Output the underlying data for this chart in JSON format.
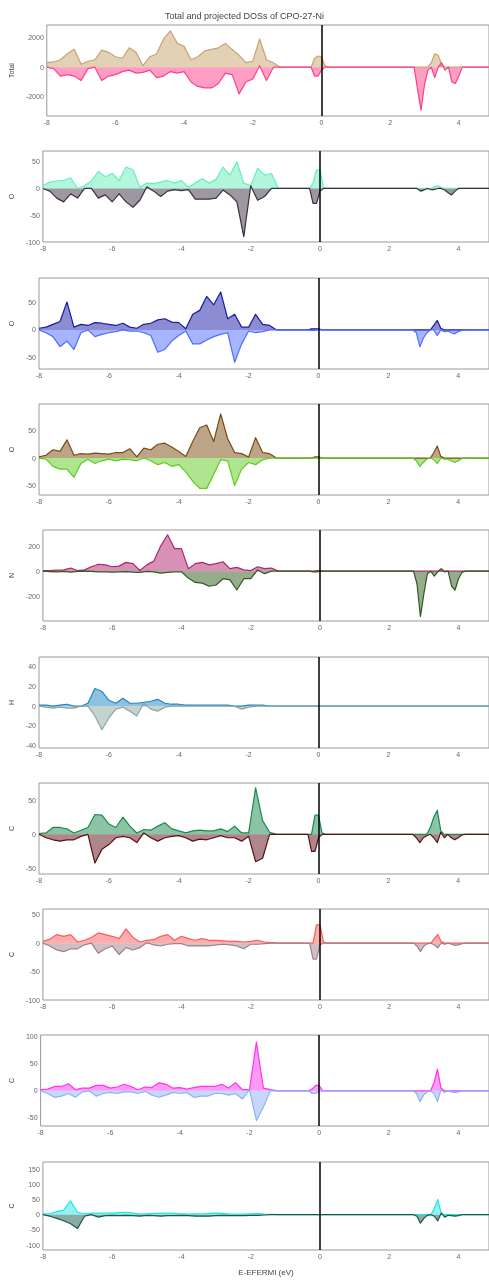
{
  "chart_data": [
    {
      "type": "area",
      "title": "Total and projected DOSs of CPO-27-Ni",
      "ylabel": "Total",
      "xlim": [
        -8,
        4.88
      ],
      "xticks": [
        -8,
        -6,
        -4,
        -2,
        0,
        2,
        4
      ],
      "ylim": [
        -3290,
        2840
      ],
      "yticks": [
        -2000,
        0,
        2000
      ],
      "grid": false,
      "marker": "none",
      "ref_lines": [
        {
          "axis": "x",
          "value": 0,
          "color": "#000000"
        }
      ],
      "x": [
        -8,
        -7.8,
        -7.6,
        -7.4,
        -7.2,
        -7,
        -6.8,
        -6.6,
        -6.4,
        -6.2,
        -6,
        -5.8,
        -5.6,
        -5.4,
        -5.2,
        -5,
        -4.8,
        -4.6,
        -4.4,
        -4.2,
        -4,
        -3.8,
        -3.6,
        -3.4,
        -3.2,
        -3,
        -2.8,
        -2.6,
        -2.4,
        -2.2,
        -2,
        -1.8,
        -1.6,
        -1.4,
        -1.2,
        -1,
        -0.3,
        -0.2,
        -0.1,
        0,
        0.1,
        0.2,
        2.7,
        2.8,
        2.9,
        3,
        3.1,
        3.2,
        3.3,
        3.4,
        3.5,
        3.6,
        3.7,
        3.8,
        3.9,
        4,
        4.1,
        4.2,
        4.3,
        4.88
      ],
      "series": [
        {
          "color": "#c8a46e",
          "values": [
            300,
            350,
            500,
            900,
            1200,
            200,
            400,
            500,
            1150,
            1000,
            700,
            600,
            1300,
            1000,
            100,
            700,
            900,
            1900,
            2450,
            1600,
            1400,
            500,
            700,
            1100,
            1200,
            1300,
            1600,
            1200,
            800,
            300,
            400,
            1900,
            500,
            300,
            0,
            0,
            0,
            600,
            750,
            700,
            100,
            0,
            0,
            0,
            0,
            0,
            0,
            300,
            900,
            800,
            200,
            0,
            0,
            0,
            0,
            0,
            0,
            0,
            0,
            0
          ]
        },
        {
          "color": "#ff3d8b",
          "values": [
            0,
            -100,
            -600,
            -500,
            -600,
            -900,
            -100,
            0,
            -900,
            -600,
            -500,
            -300,
            -200,
            -400,
            -350,
            -200,
            -700,
            -600,
            -300,
            -400,
            -300,
            -1000,
            -1300,
            -1400,
            -1400,
            -1100,
            -400,
            -500,
            -1800,
            -1000,
            -800,
            100,
            -900,
            0,
            0,
            0,
            0,
            -600,
            -600,
            -200,
            0,
            0,
            0,
            -1500,
            -2900,
            -1200,
            -200,
            0,
            -700,
            0,
            300,
            -200,
            0,
            -1000,
            -1100,
            -600,
            0,
            0,
            0,
            0
          ]
        }
      ]
    },
    {
      "type": "area",
      "ylabel": "O",
      "xlim": [
        -8,
        4.88
      ],
      "xticks": [
        -8,
        -6,
        -4,
        -2,
        0,
        2,
        4
      ],
      "ylim": [
        -100,
        70
      ],
      "yticks": [
        -100,
        -50,
        0,
        50
      ],
      "grid": false,
      "marker": "none",
      "ref_lines": [
        {
          "axis": "x",
          "value": 0,
          "color": "#000000"
        }
      ],
      "x": [
        -8,
        -7.8,
        -7.6,
        -7.4,
        -7.2,
        -7,
        -6.8,
        -6.6,
        -6.4,
        -6.2,
        -6,
        -5.8,
        -5.6,
        -5.4,
        -5.2,
        -5,
        -4.8,
        -4.6,
        -4.4,
        -4.2,
        -4,
        -3.8,
        -3.6,
        -3.4,
        -3.2,
        -3,
        -2.8,
        -2.6,
        -2.4,
        -2.2,
        -2,
        -1.8,
        -1.6,
        -1.4,
        -1.2,
        -1,
        -0.3,
        -0.2,
        -0.1,
        0,
        0.1,
        0.2,
        2.7,
        2.8,
        2.9,
        3,
        3.1,
        3.2,
        3.3,
        3.4,
        3.5,
        3.6,
        3.7,
        3.8,
        3.9,
        4,
        4.1,
        4.2,
        4.3,
        4.88
      ],
      "series": [
        {
          "color": "#66f0b8",
          "values": [
            5,
            12,
            14,
            15,
            20,
            0,
            5,
            14,
            32,
            22,
            28,
            15,
            40,
            35,
            2,
            10,
            9,
            12,
            15,
            10,
            15,
            2,
            10,
            18,
            10,
            17,
            40,
            25,
            50,
            10,
            5,
            38,
            25,
            28,
            0,
            0,
            0,
            10,
            35,
            35,
            2,
            0,
            0,
            0,
            0,
            0,
            0,
            0,
            3,
            5,
            2,
            0,
            0,
            0,
            0,
            0,
            0,
            0,
            0,
            0
          ]
        },
        {
          "color": "#3b2f42",
          "values": [
            0,
            -5,
            -18,
            -25,
            -10,
            -18,
            0,
            0,
            -18,
            -12,
            -25,
            -10,
            -25,
            -35,
            -22,
            3,
            -5,
            -15,
            -5,
            -2,
            -4,
            -2,
            -20,
            -20,
            -20,
            -18,
            -3,
            -12,
            -25,
            -90,
            5,
            -22,
            -15,
            0,
            0,
            0,
            0,
            -28,
            -28,
            -5,
            0,
            0,
            0,
            0,
            -5,
            -3,
            0,
            -2,
            -2,
            0,
            0,
            -3,
            -8,
            -12,
            -5,
            0,
            0,
            0,
            0,
            0
          ]
        }
      ]
    },
    {
      "type": "area",
      "ylabel": "O",
      "xlim": [
        -8,
        4.88
      ],
      "xticks": [
        -8,
        -6,
        -4,
        -2,
        0,
        2,
        4
      ],
      "ylim": [
        -70,
        93
      ],
      "yticks": [
        -50,
        0,
        50
      ],
      "grid": false,
      "marker": "none",
      "ref_lines": [
        {
          "axis": "x",
          "value": 0,
          "color": "#000000"
        }
      ],
      "x": [
        -8,
        -7.8,
        -7.6,
        -7.4,
        -7.2,
        -7,
        -6.8,
        -6.6,
        -6.4,
        -6.2,
        -6,
        -5.8,
        -5.6,
        -5.4,
        -5.2,
        -5,
        -4.8,
        -4.6,
        -4.4,
        -4.2,
        -4,
        -3.8,
        -3.6,
        -3.4,
        -3.2,
        -3,
        -2.8,
        -2.6,
        -2.4,
        -2.2,
        -2,
        -1.8,
        -1.6,
        -1.4,
        -1.2,
        -1,
        -0.3,
        -0.2,
        -0.1,
        0,
        0.1,
        0.2,
        2.7,
        2.8,
        2.9,
        3,
        3.1,
        3.2,
        3.3,
        3.4,
        3.5,
        3.6,
        3.7,
        3.8,
        3.9,
        4,
        4.1,
        4.2,
        4.3,
        4.88
      ],
      "series": [
        {
          "color": "#1a1aa8",
          "values": [
            3,
            5,
            10,
            15,
            50,
            5,
            10,
            8,
            13,
            12,
            10,
            8,
            12,
            5,
            3,
            10,
            12,
            18,
            20,
            14,
            13,
            2,
            28,
            35,
            60,
            45,
            68,
            20,
            28,
            5,
            5,
            28,
            10,
            8,
            0,
            0,
            0,
            2,
            2,
            2,
            0,
            0,
            0,
            0,
            0,
            0,
            0,
            0,
            8,
            17,
            3,
            0,
            0,
            0,
            0,
            0,
            0,
            0,
            0,
            0
          ]
        },
        {
          "color": "#4f6cff",
          "values": [
            0,
            -5,
            -12,
            -30,
            -20,
            -35,
            -5,
            0,
            -12,
            -8,
            -5,
            -3,
            0,
            -2,
            -2,
            -5,
            -10,
            -40,
            -35,
            -20,
            -10,
            -2,
            -25,
            -25,
            -18,
            -12,
            -8,
            -5,
            -58,
            -25,
            -2,
            -5,
            -3,
            0,
            0,
            0,
            0,
            -1,
            -1,
            0,
            0,
            0,
            0,
            -5,
            -30,
            -15,
            -5,
            0,
            0,
            -10,
            0,
            -3,
            -2,
            -5,
            -7,
            -3,
            -1,
            0,
            0,
            0
          ]
        }
      ]
    },
    {
      "type": "area",
      "ylabel": "O",
      "xlim": [
        -8,
        4.88
      ],
      "xticks": [
        -8,
        -6,
        -4,
        -2,
        0,
        2,
        4
      ],
      "ylim": [
        -67,
        98
      ],
      "yticks": [
        -50,
        0,
        50
      ],
      "grid": false,
      "marker": "none",
      "ref_lines": [
        {
          "axis": "x",
          "value": 0,
          "color": "#000000"
        }
      ],
      "x": [
        -8,
        -7.8,
        -7.6,
        -7.4,
        -7.2,
        -7,
        -6.8,
        -6.6,
        -6.4,
        -6.2,
        -6,
        -5.8,
        -5.6,
        -5.4,
        -5.2,
        -5,
        -4.8,
        -4.6,
        -4.4,
        -4.2,
        -4,
        -3.8,
        -3.6,
        -3.4,
        -3.2,
        -3,
        -2.8,
        -2.6,
        -2.4,
        -2.2,
        -2,
        -1.8,
        -1.6,
        -1.4,
        -1.2,
        -1,
        -0.3,
        -0.2,
        -0.1,
        0,
        0.1,
        0.2,
        2.7,
        2.8,
        2.9,
        3,
        3.1,
        3.2,
        3.3,
        3.4,
        3.5,
        3.6,
        3.7,
        3.8,
        3.9,
        4,
        4.1,
        4.2,
        4.3,
        4.88
      ],
      "series": [
        {
          "color": "#7a4a10",
          "values": [
            2,
            5,
            15,
            12,
            33,
            5,
            8,
            7,
            9,
            8,
            7,
            10,
            10,
            17,
            2,
            18,
            15,
            25,
            27,
            20,
            12,
            3,
            30,
            55,
            60,
            30,
            80,
            35,
            10,
            8,
            2,
            37,
            10,
            8,
            0,
            0,
            0,
            0,
            2,
            2,
            0,
            0,
            0,
            0,
            0,
            0,
            0,
            0,
            10,
            22,
            3,
            0,
            0,
            0,
            0,
            0,
            0,
            0,
            0,
            0
          ]
        },
        {
          "color": "#5ecc1e",
          "values": [
            0,
            -2,
            -15,
            -20,
            -20,
            -35,
            -10,
            -2,
            -10,
            -5,
            -2,
            -5,
            -2,
            -3,
            -5,
            0,
            -5,
            -12,
            -8,
            -15,
            -12,
            -25,
            -42,
            -55,
            -55,
            -30,
            -3,
            -5,
            -50,
            -20,
            -8,
            -12,
            -3,
            0,
            0,
            0,
            0,
            0,
            0,
            0,
            0,
            0,
            0,
            -5,
            -15,
            -8,
            -2,
            0,
            -3,
            -10,
            0,
            -2,
            -2,
            -5,
            -8,
            -5,
            -1,
            0,
            0,
            0
          ]
        }
      ]
    },
    {
      "type": "area",
      "ylabel": "N",
      "xlim": [
        -8,
        4.88
      ],
      "xticks": [
        -8,
        -6,
        -4,
        -2,
        0,
        2,
        4
      ],
      "ylim": [
        -397,
        328
      ],
      "yticks": [
        -200,
        0,
        200
      ],
      "grid": false,
      "marker": "none",
      "ref_lines": [
        {
          "axis": "x",
          "value": 0,
          "color": "#000000"
        }
      ],
      "x": [
        -8,
        -7.8,
        -7.6,
        -7.4,
        -7.2,
        -7,
        -6.8,
        -6.6,
        -6.4,
        -6.2,
        -6,
        -5.8,
        -5.6,
        -5.4,
        -5.2,
        -5,
        -4.8,
        -4.6,
        -4.4,
        -4.2,
        -4,
        -3.8,
        -3.6,
        -3.4,
        -3.2,
        -3,
        -2.8,
        -2.6,
        -2.4,
        -2.2,
        -2,
        -1.8,
        -1.6,
        -1.4,
        -1.2,
        -1,
        -0.3,
        -0.2,
        -0.1,
        0,
        0.1,
        0.2,
        2.7,
        2.8,
        2.9,
        3,
        3.1,
        3.2,
        3.3,
        3.4,
        3.5,
        3.6,
        3.7,
        3.8,
        3.9,
        4,
        4.1,
        4.2,
        4.3,
        4.88
      ],
      "series": [
        {
          "color": "#b0246e",
          "values": [
            5,
            5,
            8,
            10,
            25,
            5,
            10,
            35,
            55,
            50,
            35,
            40,
            70,
            60,
            5,
            50,
            80,
            200,
            290,
            180,
            180,
            20,
            60,
            70,
            50,
            60,
            75,
            20,
            30,
            10,
            5,
            35,
            20,
            25,
            0,
            0,
            0,
            0,
            5,
            5,
            0,
            0,
            0,
            0,
            0,
            0,
            0,
            0,
            0,
            0,
            0,
            0,
            0,
            0,
            0,
            0,
            0,
            0,
            0,
            0
          ]
        },
        {
          "color": "#2e5a1c",
          "values": [
            0,
            -3,
            -5,
            -2,
            -8,
            -2,
            0,
            -2,
            -5,
            -5,
            -8,
            -5,
            -3,
            -8,
            -10,
            -2,
            -5,
            -15,
            -10,
            -5,
            -5,
            -55,
            -90,
            -95,
            -120,
            -110,
            -60,
            -70,
            -150,
            -60,
            -60,
            10,
            -20,
            0,
            0,
            0,
            0,
            -5,
            -5,
            -2,
            0,
            0,
            0,
            -100,
            -360,
            -180,
            -20,
            0,
            -40,
            -5,
            20,
            -5,
            0,
            -120,
            -150,
            -60,
            -10,
            0,
            0,
            0
          ]
        }
      ]
    },
    {
      "type": "area",
      "ylabel": "H",
      "xlim": [
        -8,
        4.88
      ],
      "xticks": [
        -8,
        -6,
        -4,
        -2,
        0,
        2,
        4
      ],
      "ylim": [
        -42.5,
        50
      ],
      "yticks": [
        -40,
        -20,
        0,
        20,
        40
      ],
      "grid": false,
      "marker": "none",
      "ref_lines": [
        {
          "axis": "x",
          "value": 0,
          "color": "#000000"
        }
      ],
      "x": [
        -8,
        -7.8,
        -7.6,
        -7.4,
        -7.2,
        -7,
        -6.8,
        -6.6,
        -6.4,
        -6.2,
        -6,
        -5.8,
        -5.6,
        -5.4,
        -5.2,
        -5,
        -4.8,
        -4.6,
        -4.4,
        -4.2,
        -4,
        -3.8,
        -3.6,
        -3.4,
        -3.2,
        -3,
        -2.8,
        -2.6,
        -2.4,
        -2.2,
        -2,
        -1.8,
        -1.6,
        -1.4,
        -1.2,
        -1,
        -0.3,
        -0.2,
        -0.1,
        0,
        0.1,
        0.2,
        2.7,
        2.8,
        2.9,
        3,
        3.1,
        3.2,
        3.3,
        3.4,
        3.5,
        3.6,
        3.7,
        3.8,
        3.9,
        4,
        4.1,
        4.2,
        4.3,
        4.88
      ],
      "series": [
        {
          "color": "#1f86c4",
          "values": [
            1,
            1,
            0,
            1,
            2,
            0,
            0,
            3,
            18,
            15,
            6,
            3,
            8,
            3,
            3,
            4,
            5,
            7,
            3,
            2,
            2,
            1,
            1,
            1,
            1,
            1,
            1,
            1,
            0,
            0,
            1,
            1,
            1,
            0,
            0,
            0,
            0,
            0,
            0,
            0,
            0,
            0,
            0,
            0,
            0,
            0,
            0,
            0,
            0,
            0,
            0,
            0,
            0,
            0,
            0,
            0,
            0,
            0,
            0,
            0
          ]
        },
        {
          "color": "#8aa6a2",
          "values": [
            0,
            -1,
            -2,
            -1,
            -2,
            -2,
            0,
            0,
            -10,
            -24,
            -12,
            -3,
            -1,
            -5,
            -10,
            3,
            -3,
            -5,
            -1,
            0,
            0,
            0,
            0,
            0,
            0,
            0,
            0,
            0,
            0,
            -3,
            -1,
            0,
            0,
            0,
            0,
            0,
            0,
            0,
            0,
            0,
            0,
            0,
            0,
            0,
            0,
            0,
            0,
            0,
            0,
            0,
            0,
            0,
            0,
            0,
            0,
            0,
            0,
            0,
            0,
            0
          ]
        }
      ]
    },
    {
      "type": "area",
      "ylabel": "C",
      "xlim": [
        -8,
        4.88
      ],
      "xticks": [
        -8,
        -6,
        -4,
        -2,
        0,
        2,
        4
      ],
      "ylim": [
        -58,
        75
      ],
      "yticks": [
        -50,
        0,
        50
      ],
      "grid": false,
      "marker": "none",
      "ref_lines": [
        {
          "axis": "x",
          "value": 0,
          "color": "#000000"
        }
      ],
      "x": [
        -8,
        -7.8,
        -7.6,
        -7.4,
        -7.2,
        -7,
        -6.8,
        -6.6,
        -6.4,
        -6.2,
        -6,
        -5.8,
        -5.6,
        -5.4,
        -5.2,
        -5,
        -4.8,
        -4.6,
        -4.4,
        -4.2,
        -4,
        -3.8,
        -3.6,
        -3.4,
        -3.2,
        -3,
        -2.8,
        -2.6,
        -2.4,
        -2.2,
        -2,
        -1.8,
        -1.6,
        -1.4,
        -1.2,
        -1,
        -0.3,
        -0.2,
        -0.1,
        0,
        0.1,
        0.2,
        2.7,
        2.8,
        2.9,
        3,
        3.1,
        3.2,
        3.3,
        3.4,
        3.5,
        3.6,
        3.7,
        3.8,
        3.9,
        4,
        4.1,
        4.2,
        4.3,
        4.88
      ],
      "series": [
        {
          "color": "#178a4c",
          "values": [
            1,
            2,
            10,
            10,
            8,
            2,
            6,
            10,
            29,
            28,
            15,
            10,
            25,
            12,
            2,
            7,
            6,
            12,
            17,
            8,
            5,
            2,
            5,
            6,
            5,
            5,
            8,
            4,
            12,
            2,
            2,
            68,
            20,
            3,
            0,
            0,
            0,
            0,
            28,
            28,
            2,
            0,
            0,
            0,
            0,
            0,
            0,
            10,
            25,
            35,
            5,
            0,
            0,
            0,
            0,
            0,
            0,
            0,
            0,
            0
          ]
        },
        {
          "color": "#5c0f15",
          "values": [
            0,
            -5,
            -8,
            -10,
            -8,
            -8,
            -3,
            0,
            -42,
            -22,
            -15,
            -5,
            -3,
            -5,
            -12,
            2,
            -5,
            -10,
            -5,
            -3,
            -2,
            -5,
            -10,
            -7,
            -8,
            -5,
            -2,
            -5,
            -5,
            -10,
            -3,
            -40,
            -35,
            0,
            0,
            0,
            0,
            -25,
            -25,
            -5,
            0,
            0,
            0,
            -5,
            -12,
            -5,
            -2,
            0,
            -5,
            -12,
            3,
            -5,
            0,
            -5,
            -8,
            -5,
            -1,
            0,
            0,
            0
          ]
        }
      ]
    },
    {
      "type": "area",
      "ylabel": "C",
      "xlim": [
        -8,
        4.88
      ],
      "xticks": [
        -8,
        -6,
        -4,
        -2,
        0,
        2,
        4
      ],
      "ylim": [
        -100,
        60
      ],
      "yticks": [
        -100,
        -50,
        0,
        50
      ],
      "grid": false,
      "marker": "none",
      "ref_lines": [
        {
          "axis": "x",
          "value": 0,
          "color": "#000000"
        }
      ],
      "x": [
        -8,
        -7.8,
        -7.6,
        -7.4,
        -7.2,
        -7,
        -6.8,
        -6.6,
        -6.4,
        -6.2,
        -6,
        -5.8,
        -5.6,
        -5.4,
        -5.2,
        -5,
        -4.8,
        -4.6,
        -4.4,
        -4.2,
        -4,
        -3.8,
        -3.6,
        -3.4,
        -3.2,
        -3,
        -2.8,
        -2.6,
        -2.4,
        -2.2,
        -2,
        -1.8,
        -1.6,
        -1.4,
        -1.2,
        -1,
        -0.3,
        -0.2,
        -0.1,
        0,
        0.1,
        0.2,
        2.7,
        2.8,
        2.9,
        3,
        3.1,
        3.2,
        3.3,
        3.4,
        3.5,
        3.6,
        3.7,
        3.8,
        3.9,
        4,
        4.1,
        4.2,
        4.3,
        4.88
      ],
      "series": [
        {
          "color": "#ff5a5a",
          "values": [
            3,
            7,
            15,
            12,
            15,
            2,
            5,
            10,
            18,
            15,
            12,
            8,
            25,
            10,
            2,
            5,
            6,
            12,
            15,
            5,
            12,
            8,
            5,
            8,
            5,
            5,
            4,
            3,
            3,
            2,
            3,
            5,
            2,
            1,
            0,
            0,
            0,
            0,
            32,
            32,
            2,
            0,
            0,
            0,
            0,
            0,
            0,
            0,
            8,
            15,
            3,
            0,
            0,
            0,
            0,
            0,
            0,
            0,
            0,
            0
          ]
        },
        {
          "color": "#a08088",
          "values": [
            0,
            -5,
            -12,
            -15,
            -10,
            -10,
            -3,
            0,
            -18,
            -10,
            -5,
            -20,
            -8,
            -12,
            -8,
            1,
            -3,
            -5,
            -2,
            -1,
            -1,
            -5,
            -5,
            -5,
            -5,
            -3,
            -2,
            -3,
            -5,
            -10,
            -2,
            -2,
            -1,
            0,
            0,
            0,
            0,
            -28,
            -28,
            -3,
            0,
            0,
            0,
            -5,
            -15,
            -5,
            -1,
            0,
            -3,
            -8,
            0,
            -2,
            0,
            -2,
            -4,
            -3,
            -1,
            0,
            0,
            0
          ]
        }
      ]
    },
    {
      "type": "area",
      "ylabel": "C",
      "xlim": [
        -8,
        4.88
      ],
      "xticks": [
        -8,
        -6,
        -4,
        -2,
        0,
        2,
        4
      ],
      "ylim": [
        -65,
        103
      ],
      "yticks": [
        -50,
        0,
        50,
        100
      ],
      "grid": false,
      "marker": "none",
      "ref_lines": [
        {
          "axis": "x",
          "value": 0,
          "color": "#000000"
        }
      ],
      "x": [
        -8,
        -7.8,
        -7.6,
        -7.4,
        -7.2,
        -7,
        -6.8,
        -6.6,
        -6.4,
        -6.2,
        -6,
        -5.8,
        -5.6,
        -5.4,
        -5.2,
        -5,
        -4.8,
        -4.6,
        -4.4,
        -4.2,
        -4,
        -3.8,
        -3.6,
        -3.4,
        -3.2,
        -3,
        -2.8,
        -2.6,
        -2.4,
        -2.2,
        -2,
        -1.8,
        -1.6,
        -1.4,
        -1.2,
        -1,
        -0.3,
        -0.2,
        -0.1,
        0,
        0.1,
        0.2,
        2.7,
        2.8,
        2.9,
        3,
        3.1,
        3.2,
        3.3,
        3.4,
        3.5,
        3.6,
        3.7,
        3.8,
        3.9,
        4,
        4.1,
        4.2,
        4.3,
        4.88
      ],
      "series": [
        {
          "color": "#ff33ee",
          "values": [
            2,
            3,
            8,
            8,
            13,
            2,
            5,
            5,
            10,
            10,
            5,
            7,
            12,
            8,
            2,
            7,
            6,
            15,
            12,
            5,
            6,
            3,
            6,
            8,
            8,
            8,
            12,
            5,
            15,
            2,
            2,
            90,
            5,
            2,
            0,
            0,
            0,
            3,
            10,
            10,
            0,
            0,
            0,
            0,
            0,
            0,
            0,
            0,
            15,
            40,
            5,
            0,
            0,
            0,
            0,
            0,
            0,
            0,
            0,
            0
          ]
        },
        {
          "color": "#8cb2f5",
          "values": [
            0,
            -5,
            -12,
            -10,
            -5,
            -12,
            -2,
            0,
            -10,
            -5,
            -3,
            -5,
            -2,
            -2,
            -5,
            -1,
            -8,
            -12,
            -8,
            -3,
            -5,
            -3,
            -12,
            -10,
            -10,
            -5,
            -5,
            -8,
            -5,
            -15,
            2,
            -55,
            -30,
            0,
            0,
            0,
            0,
            -5,
            -5,
            -1,
            0,
            0,
            0,
            -5,
            -20,
            -8,
            -2,
            0,
            -5,
            -20,
            2,
            -3,
            0,
            -2,
            -3,
            -2,
            0,
            0,
            0,
            0
          ]
        }
      ]
    },
    {
      "type": "area",
      "ylabel": "C",
      "xlabel": "E-EFERMI (eV)",
      "xlim": [
        -8,
        4.88
      ],
      "xticks": [
        -8,
        -6,
        -4,
        -2,
        0,
        2,
        4
      ],
      "ylim": [
        -116,
        173
      ],
      "yticks": [
        -100,
        -50,
        0,
        50,
        100,
        150
      ],
      "grid": false,
      "marker": "none",
      "ref_lines": [
        {
          "axis": "x",
          "value": 0,
          "color": "#000000"
        }
      ],
      "x": [
        -8,
        -7.8,
        -7.6,
        -7.4,
        -7.2,
        -7,
        -6.8,
        -6.6,
        -6.4,
        -6.2,
        -6,
        -5.8,
        -5.6,
        -5.4,
        -5.2,
        -5,
        -4.8,
        -4.6,
        -4.4,
        -4.2,
        -4,
        -3.8,
        -3.6,
        -3.4,
        -3.2,
        -3,
        -2.8,
        -2.6,
        -2.4,
        -2.2,
        -2,
        -1.8,
        -1.6,
        -1.4,
        -1.2,
        -1,
        -0.3,
        -0.2,
        -0.1,
        0,
        0.1,
        0.2,
        2.7,
        2.8,
        2.9,
        3,
        3.1,
        3.2,
        3.3,
        3.4,
        3.5,
        3.6,
        3.7,
        3.8,
        3.9,
        4,
        4.1,
        4.2,
        4.3,
        4.88
      ],
      "series": [
        {
          "color": "#22e5e5",
          "values": [
            3,
            3,
            10,
            15,
            45,
            8,
            3,
            5,
            5,
            5,
            5,
            7,
            8,
            5,
            2,
            3,
            4,
            5,
            5,
            4,
            3,
            2,
            3,
            3,
            4,
            5,
            4,
            2,
            2,
            2,
            3,
            4,
            1,
            1,
            0,
            0,
            0,
            0,
            0,
            0,
            0,
            0,
            0,
            0,
            0,
            0,
            0,
            0,
            20,
            50,
            5,
            0,
            0,
            0,
            0,
            0,
            0,
            0,
            0,
            0
          ]
        },
        {
          "color": "#1c574b",
          "values": [
            0,
            -5,
            -12,
            -20,
            -30,
            -45,
            -5,
            0,
            -8,
            -3,
            -2,
            -3,
            -2,
            -3,
            -5,
            -2,
            -3,
            -5,
            -3,
            -3,
            -2,
            -3,
            -5,
            -5,
            -5,
            -3,
            -2,
            -3,
            -3,
            -3,
            -2,
            -2,
            -1,
            0,
            0,
            0,
            0,
            0,
            0,
            0,
            0,
            0,
            0,
            -5,
            -28,
            -12,
            -2,
            0,
            -5,
            -20,
            5,
            -8,
            -2,
            -3,
            -5,
            -3,
            0,
            0,
            0,
            0
          ]
        }
      ]
    }
  ]
}
